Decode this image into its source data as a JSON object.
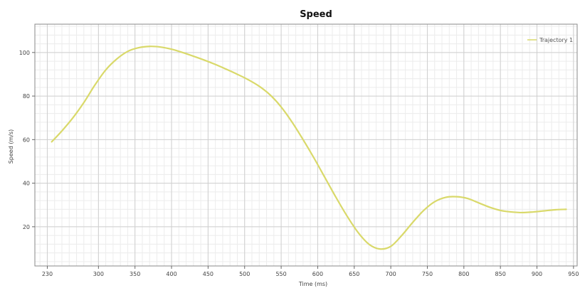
{
  "chart_data": {
    "type": "line",
    "title": "Speed",
    "xlabel": "Time (ms)",
    "ylabel": "Speed (m/s)",
    "xlim": [
      213,
      955
    ],
    "ylim": [
      2,
      113
    ],
    "x_ticks": [
      230,
      300,
      350,
      400,
      450,
      500,
      550,
      600,
      650,
      700,
      750,
      800,
      850,
      900,
      950
    ],
    "y_ticks": [
      20,
      40,
      60,
      80,
      100
    ],
    "x_minor_step": 10,
    "y_minor_step": 4,
    "grid": true,
    "legend_position": "top-right",
    "series": [
      {
        "name": "Trajectory 1",
        "color": "#d9d96a",
        "x": [
          236,
          250,
          265,
          280,
          295,
          310,
          325,
          340,
          355,
          370,
          385,
          400,
          415,
          430,
          445,
          460,
          475,
          490,
          505,
          520,
          535,
          550,
          565,
          580,
          595,
          610,
          625,
          640,
          655,
          670,
          685,
          700,
          715,
          730,
          745,
          760,
          775,
          790,
          805,
          820,
          835,
          850,
          865,
          880,
          895,
          910,
          925,
          940
        ],
        "y": [
          59,
          64,
          70,
          77,
          85,
          92,
          97,
          100.5,
          102.2,
          102.8,
          102.5,
          101.5,
          100,
          98.3,
          96.5,
          94.5,
          92.3,
          90,
          87.5,
          84.5,
          80.5,
          75,
          68,
          60,
          51.5,
          42.5,
          33.5,
          25,
          17.5,
          12,
          9.8,
          11,
          16,
          22,
          27.5,
          31.5,
          33.5,
          33.8,
          33,
          31,
          29,
          27.5,
          26.8,
          26.5,
          26.8,
          27.3,
          27.8,
          28
        ]
      }
    ]
  }
}
